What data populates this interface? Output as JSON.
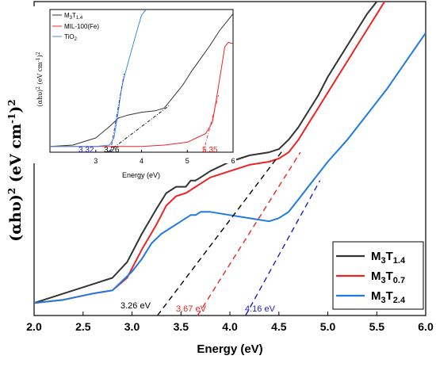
{
  "chart_data": [
    {
      "type": "line",
      "xlabel": "Energy (eV)",
      "ylabel_parts": [
        "(αhυ)",
        "2",
        " (eV cm",
        "-1",
        ")",
        "2"
      ],
      "xlim": [
        2.0,
        6.0
      ],
      "x_ticks": [
        "2.0",
        "2.5",
        "3.0",
        "3.5",
        "4.0",
        "4.5",
        "5.0",
        "5.5",
        "6.0"
      ],
      "ylim": [
        0,
        1.0
      ],
      "legend_position": "bottom-right",
      "series": [
        {
          "name": "M3T1.4",
          "name_main": "M",
          "name_sub1": "3",
          "name_mid": "T",
          "name_sub2": "1.4",
          "color": "#333333",
          "x": [
            2.0,
            2.3,
            2.6,
            2.8,
            2.95,
            3.1,
            3.25,
            3.35,
            3.45,
            3.55,
            3.6,
            3.65,
            3.7,
            3.8,
            4.0,
            4.2,
            4.4,
            4.5,
            4.6,
            4.7,
            4.8,
            4.9,
            5.0,
            5.1,
            5.2,
            5.3,
            5.4,
            5.5
          ],
          "y": [
            0.04,
            0.07,
            0.1,
            0.12,
            0.17,
            0.26,
            0.34,
            0.39,
            0.41,
            0.41,
            0.43,
            0.43,
            0.44,
            0.46,
            0.49,
            0.51,
            0.52,
            0.53,
            0.56,
            0.6,
            0.65,
            0.7,
            0.76,
            0.81,
            0.86,
            0.91,
            0.96,
            1.0
          ]
        },
        {
          "name": "M3T0.7",
          "name_main": "M",
          "name_sub1": "3",
          "name_mid": "T",
          "name_sub2": "0.7",
          "color": "#ee2424",
          "x": [
            2.0,
            2.3,
            2.6,
            2.8,
            2.95,
            3.1,
            3.25,
            3.35,
            3.45,
            3.55,
            3.6,
            3.65,
            3.7,
            3.8,
            4.0,
            4.2,
            4.4,
            4.5,
            4.6,
            4.7,
            4.8,
            4.9,
            5.0,
            5.1,
            5.2,
            5.3,
            5.4,
            5.5,
            5.58
          ],
          "y": [
            0.04,
            0.05,
            0.07,
            0.08,
            0.12,
            0.21,
            0.29,
            0.35,
            0.38,
            0.39,
            0.4,
            0.41,
            0.42,
            0.44,
            0.46,
            0.48,
            0.49,
            0.5,
            0.52,
            0.56,
            0.61,
            0.66,
            0.71,
            0.76,
            0.81,
            0.86,
            0.91,
            0.96,
            1.0
          ]
        },
        {
          "name": "M3T2.4",
          "name_main": "M",
          "name_sub1": "3",
          "name_mid": "T",
          "name_sub2": "2.4",
          "color": "#1f7ae6",
          "x": [
            2.0,
            2.3,
            2.6,
            2.8,
            3.0,
            3.1,
            3.2,
            3.3,
            3.4,
            3.5,
            3.55,
            3.6,
            3.65,
            3.7,
            3.8,
            4.0,
            4.2,
            4.4,
            4.5,
            4.6,
            4.7,
            4.8,
            4.9,
            5.0,
            5.2,
            5.4,
            5.6,
            5.8,
            6.0
          ],
          "y": [
            0.04,
            0.05,
            0.07,
            0.08,
            0.14,
            0.18,
            0.23,
            0.26,
            0.28,
            0.3,
            0.31,
            0.32,
            0.32,
            0.33,
            0.33,
            0.32,
            0.31,
            0.3,
            0.31,
            0.33,
            0.37,
            0.41,
            0.45,
            0.49,
            0.56,
            0.64,
            0.72,
            0.81,
            0.9
          ]
        }
      ],
      "tangents": [
        {
          "label": "3.26 eV",
          "color": "#000000",
          "x": [
            3.26,
            4.55
          ],
          "y": [
            0.0,
            0.53
          ]
        },
        {
          "label": "3.67 eV",
          "color": "#ee2424",
          "x": [
            3.67,
            4.72
          ],
          "y": [
            0.0,
            0.52
          ]
        },
        {
          "label": "4.16 eV",
          "color": "#1d1dcf",
          "x": [
            4.16,
            4.92
          ],
          "y": [
            0.0,
            0.43
          ]
        }
      ]
    },
    {
      "type": "line",
      "xlabel": "Energy (eV)",
      "ylabel_parts": [
        "(αhυ)",
        "2",
        " (eV cm",
        "-1",
        ")",
        "2"
      ],
      "xlim": [
        2.0,
        6.0
      ],
      "x_ticks": [
        "3",
        "4",
        "5",
        "6"
      ],
      "ylim": [
        0,
        1.0
      ],
      "legend_position": "top-left",
      "series": [
        {
          "name": "M3T1.4",
          "legend_main": "M",
          "legend_sub1": "3",
          "legend_mid": "T",
          "legend_sub2": "1.4",
          "color": "#333333",
          "x": [
            2.0,
            2.5,
            3.0,
            3.3,
            3.5,
            3.7,
            4.0,
            4.3,
            4.5,
            4.7,
            4.9,
            5.1,
            5.3,
            5.5,
            5.7,
            5.9,
            6.0
          ],
          "y": [
            0.04,
            0.05,
            0.1,
            0.18,
            0.24,
            0.26,
            0.28,
            0.29,
            0.31,
            0.39,
            0.47,
            0.57,
            0.66,
            0.75,
            0.85,
            0.93,
            0.97
          ]
        },
        {
          "name": "MIL-100(Fe)",
          "legend_text": "MIL-100(Fe)",
          "color": "#ee2424",
          "x": [
            2.0,
            3.0,
            4.0,
            4.5,
            5.0,
            5.2,
            5.4,
            5.55,
            5.65,
            5.75,
            5.82,
            5.9,
            6.0
          ],
          "y": [
            0.04,
            0.04,
            0.04,
            0.05,
            0.07,
            0.1,
            0.13,
            0.21,
            0.4,
            0.6,
            0.74,
            0.77,
            0.76
          ]
        },
        {
          "name": "TiO2",
          "legend_main": "TiO",
          "legend_sub1": "2",
          "legend_mid": "",
          "legend_sub2": "",
          "color": "#3b8fd9",
          "x": [
            2.0,
            3.0,
            3.3,
            3.4,
            3.45,
            3.5,
            3.55,
            3.6,
            3.7,
            3.9,
            4.0,
            4.1
          ],
          "y": [
            0.04,
            0.04,
            0.05,
            0.1,
            0.2,
            0.3,
            0.42,
            0.5,
            0.62,
            0.85,
            0.96,
            1.05
          ]
        }
      ],
      "tangents": [
        {
          "label": "3.32",
          "color": "#1d1dcf",
          "x": [
            3.32,
            3.62
          ],
          "y": [
            0.0,
            0.55
          ]
        },
        {
          "label": "3.26",
          "color": "#000000",
          "x": [
            3.26,
            4.62
          ],
          "y": [
            0.0,
            0.33
          ]
        },
        {
          "label": "5.35",
          "color": "#ee2424",
          "x": [
            5.35,
            5.68
          ],
          "y": [
            0.0,
            0.4
          ]
        }
      ]
    }
  ]
}
